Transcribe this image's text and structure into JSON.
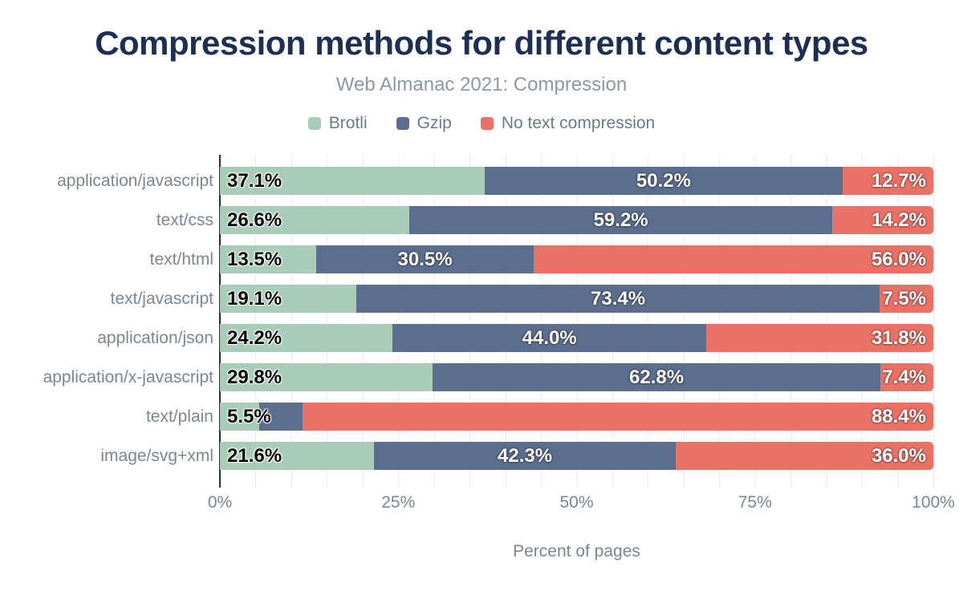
{
  "chart_data": {
    "type": "bar",
    "orientation": "horizontal",
    "stacked": true,
    "title": "Compression methods for different content types",
    "subtitle": "Web Almanac 2021: Compression",
    "xlabel": "Percent of pages",
    "xlim": [
      0,
      100
    ],
    "grid": true,
    "grid_interval_percent": 5,
    "legend_position": "top",
    "x_ticks": [
      {
        "value": 0,
        "label": "0%"
      },
      {
        "value": 25,
        "label": "25%"
      },
      {
        "value": 50,
        "label": "50%"
      },
      {
        "value": 75,
        "label": "75%"
      },
      {
        "value": 100,
        "label": "100%"
      }
    ],
    "categories": [
      "application/javascript",
      "text/css",
      "text/html",
      "text/javascript",
      "application/json",
      "application/x-javascript",
      "text/plain",
      "image/svg+xml"
    ],
    "series": [
      {
        "name": "Brotli",
        "color": "#a9ccb8",
        "label_style": "dark",
        "label_align": "left",
        "values": [
          37.1,
          26.6,
          13.5,
          19.1,
          24.2,
          29.8,
          5.5,
          21.6
        ],
        "labels": [
          "37.1%",
          "26.6%",
          "13.5%",
          "19.1%",
          "24.2%",
          "29.8%",
          "5.5%",
          "21.6%"
        ]
      },
      {
        "name": "Gzip",
        "color": "#5b6e8e",
        "label_style": "light",
        "label_align": "center",
        "values": [
          50.2,
          59.2,
          30.5,
          73.4,
          44.0,
          62.8,
          6.1,
          42.3
        ],
        "labels": [
          "50.2%",
          "59.2%",
          "30.5%",
          "73.4%",
          "44.0%",
          "62.8%",
          "",
          "42.3%"
        ]
      },
      {
        "name": "No text compression",
        "color": "#e97166",
        "label_style": "light",
        "label_align": "right",
        "values": [
          12.7,
          14.2,
          56.0,
          7.5,
          31.8,
          7.4,
          88.4,
          36.0
        ],
        "labels": [
          "12.7%",
          "14.2%",
          "56.0%",
          "7.5%",
          "31.8%",
          "7.4%",
          "88.4%",
          "36.0%"
        ]
      }
    ],
    "colors": {
      "title_text": "#1e2f53",
      "subtitle_text": "#8e97a6",
      "axis_text": "#7c8692",
      "grid_line": "#ededed",
      "axis_line": "#25303f",
      "background": "#ffffff"
    }
  }
}
